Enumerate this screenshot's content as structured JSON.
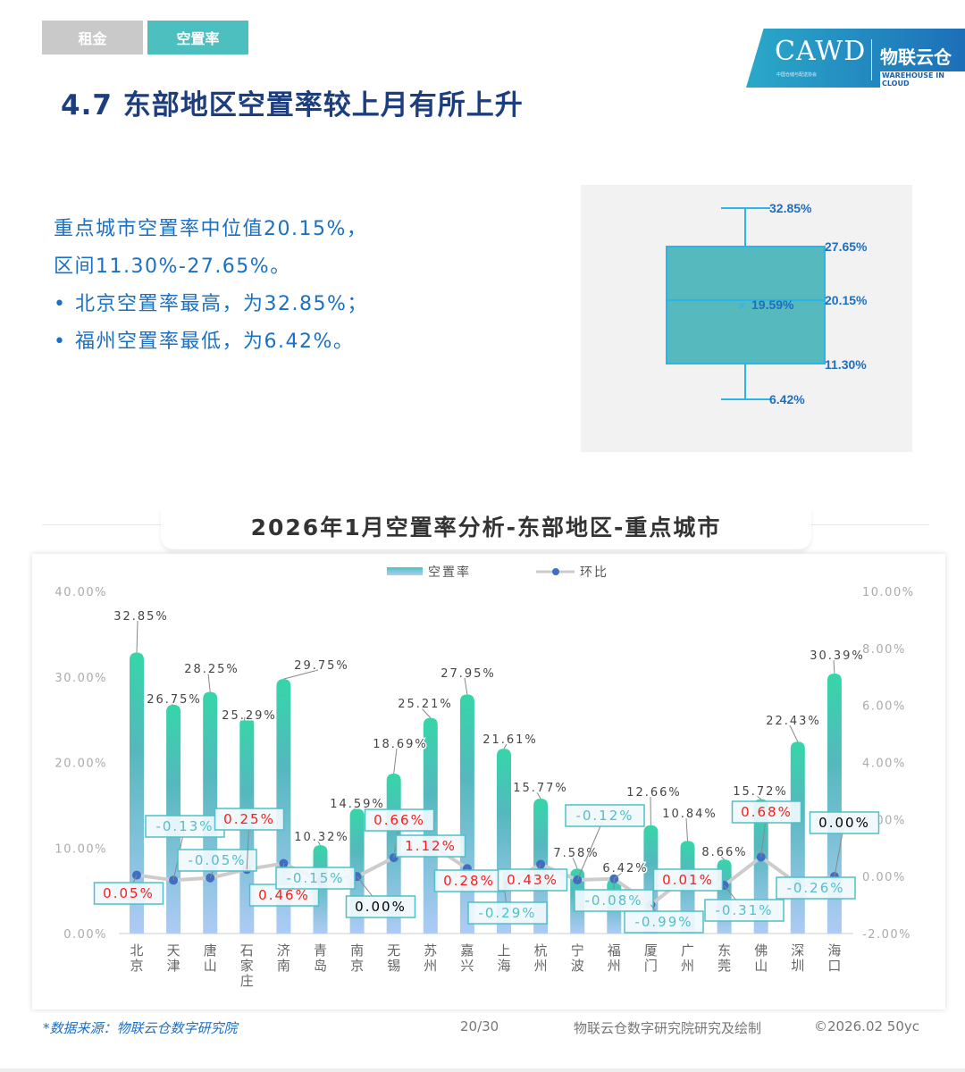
{
  "tabs": [
    {
      "label": "租金",
      "active": false
    },
    {
      "label": "空置率",
      "active": true
    }
  ],
  "logo": {
    "cawd": "CAWD",
    "cawd_sub": "中国仓储与配送协会",
    "brand": "物联云仓",
    "brand_en": "WAREHOUSE IN CLOUD"
  },
  "page_title": "4.7 东部地区空置率较上月有所上升",
  "summary": {
    "line1": "重点城市空置率中位值20.15%，",
    "line2": "区间11.30%-27.65%。",
    "bullets": [
      "北京空置率最高，为32.85%；",
      "福州空置率最低，为6.42%。"
    ]
  },
  "boxplot": {
    "max": 32.85,
    "q3": 27.65,
    "median": 20.15,
    "mean": 19.59,
    "q1": 11.3,
    "min": 6.42,
    "labels": {
      "max": "32.85%",
      "q3": "27.65%",
      "median": "20.15%",
      "mean": "19.59%",
      "q1": "11.30%",
      "min": "6.42%"
    },
    "color": "#55b9be",
    "stroke": "#2ab5e8",
    "label_color": "#1f6fbf"
  },
  "chart_title": "2026年1月空置率分析-东部地区-重点城市",
  "chart_data": {
    "type": "bar+line",
    "categories": [
      "北京",
      "天津",
      "唐山",
      "石家庄",
      "济南",
      "青岛",
      "南京",
      "无锡",
      "苏州",
      "嘉兴",
      "上海",
      "杭州",
      "宁波",
      "福州",
      "厦门",
      "广州",
      "东莞",
      "佛山",
      "深圳",
      "海口"
    ],
    "series": [
      {
        "name": "空置率",
        "type": "bar",
        "axis": "left",
        "values": [
          32.85,
          26.75,
          28.25,
          25.29,
          29.75,
          10.32,
          14.59,
          18.69,
          25.21,
          27.95,
          21.61,
          15.77,
          7.58,
          6.42,
          12.66,
          10.84,
          8.66,
          15.72,
          22.43,
          30.39
        ]
      },
      {
        "name": "环比",
        "type": "line",
        "axis": "right",
        "values": [
          0.05,
          -0.13,
          -0.05,
          0.25,
          0.46,
          -0.15,
          0.0,
          0.66,
          1.12,
          0.28,
          -0.29,
          0.43,
          -0.12,
          -0.08,
          -0.99,
          0.01,
          -0.31,
          0.68,
          -0.26,
          0.0
        ]
      }
    ],
    "left_axis": {
      "min": 0,
      "max": 40,
      "ticks": [
        "0.00%",
        "10.00%",
        "20.00%",
        "30.00%",
        "40.00%"
      ]
    },
    "right_axis": {
      "min": -2,
      "max": 10,
      "ticks": [
        "-2.00%",
        "0.00%",
        "2.00%",
        "4.00%",
        "6.00%",
        "8.00%",
        "10.00%"
      ]
    },
    "legend_position": "top-center",
    "colors": {
      "bar_top": "#35d6a8",
      "bar_mid": "#55b8be",
      "bar_bottom": "#aecbf5",
      "line": "#cccccc",
      "dot": "#3f6ec2",
      "positive": "#ff1a1a",
      "negative": "#4fc0c8",
      "zero": "#000000"
    }
  },
  "footer": {
    "source": "*数据来源：物联云仓数字研究院",
    "page": "20/30",
    "credit": "物联云仓数字研究院研究及绘制",
    "copyright": "©2026.02 50yc"
  }
}
